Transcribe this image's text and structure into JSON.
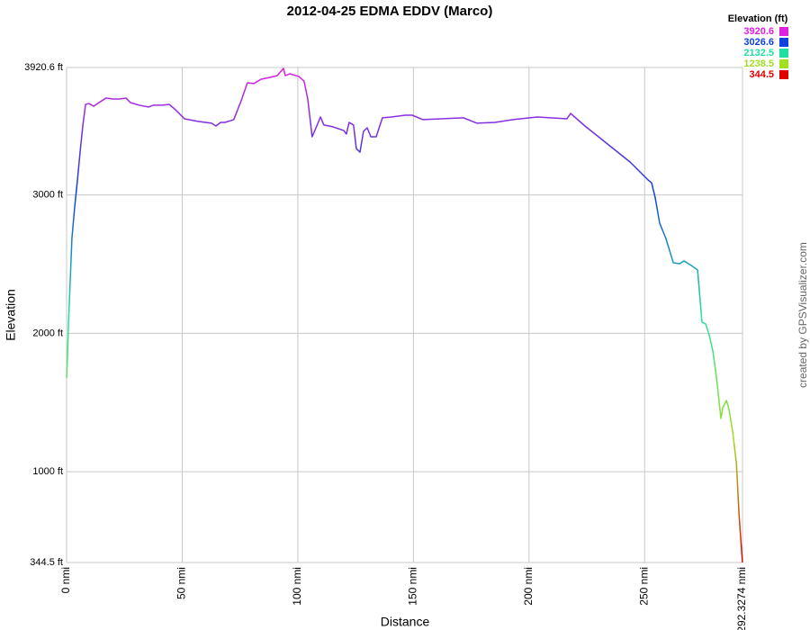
{
  "chart_data": {
    "type": "line",
    "title": "2012-04-25 EDMA EDDV (Marco)",
    "x_label": "Distance",
    "y_label": "Elevation",
    "legend_title": "Elevation (ft)",
    "color_scale": [
      {
        "value": 3920.6,
        "color": "#e020e0"
      },
      {
        "value": 3026.6,
        "color": "#1040e0"
      },
      {
        "value": 2132.5,
        "color": "#20e0a0"
      },
      {
        "value": 1238.5,
        "color": "#a0e020"
      },
      {
        "value": 344.5,
        "color": "#e00000"
      }
    ],
    "watermark": "created by GPSVisualizer.com",
    "x": [
      0,
      0.4,
      0.8,
      1.6,
      2.3,
      3.5,
      4.7,
      5.8,
      7.0,
      8.2,
      9.7,
      11.7,
      14.0,
      17.1,
      19.9,
      23.0,
      25.7,
      27.6,
      31.5,
      35.4,
      37.4,
      41.3,
      44.4,
      47.1,
      51.0,
      56.8,
      62.7,
      64.6,
      66.6,
      68.5,
      72.3,
      75.5,
      78.2,
      80.9,
      84.1,
      88.0,
      91.1,
      93.8,
      94.6,
      96.5,
      100.4,
      102.7,
      104.3,
      106.2,
      108.2,
      109.8,
      111.3,
      115.2,
      119.9,
      121.0,
      122.2,
      124.1,
      125.3,
      126.9,
      128.4,
      130.0,
      131.6,
      133.9,
      136.6,
      140.5,
      146.4,
      149.5,
      154.1,
      161.9,
      171.7,
      177.5,
      185.3,
      193.1,
      203.6,
      216.4,
      218.0,
      224.2,
      243.7,
      251.5,
      253.0,
      254.6,
      256.5,
      259.2,
      262.4,
      265.1,
      267.0,
      270.2,
      272.9,
      274.8,
      276.4,
      277.9,
      279.5,
      281.1,
      283.0,
      283.8,
      285.4,
      286.5,
      288.1,
      289.7,
      290.8,
      291.6,
      292.3274
    ],
    "values": [
      1677,
      1840,
      2067,
      2393,
      2685,
      2913,
      3108,
      3303,
      3498,
      3654,
      3660,
      3641,
      3667,
      3700,
      3693,
      3693,
      3700,
      3667,
      3648,
      3635,
      3648,
      3648,
      3654,
      3615,
      3550,
      3531,
      3518,
      3498,
      3524,
      3524,
      3544,
      3680,
      3810,
      3804,
      3836,
      3849,
      3862,
      3914,
      3862,
      3875,
      3856,
      3823,
      3693,
      3420,
      3498,
      3563,
      3505,
      3492,
      3465,
      3440,
      3524,
      3505,
      3335,
      3309,
      3459,
      3485,
      3420,
      3420,
      3557,
      3563,
      3576,
      3576,
      3544,
      3550,
      3557,
      3518,
      3524,
      3544,
      3563,
      3550,
      3589,
      3498,
      3238,
      3108,
      3088,
      2978,
      2796,
      2685,
      2510,
      2503,
      2523,
      2490,
      2458,
      2081,
      2068,
      1990,
      1872,
      1677,
      1385,
      1463,
      1515,
      1450,
      1287,
      1060,
      702,
      507,
      344.5
    ],
    "xlim": [
      0,
      292.3274
    ],
    "ylim": [
      344.5,
      3920.6
    ],
    "xticks": [
      {
        "value": 0,
        "label": "0 nmi"
      },
      {
        "value": 50,
        "label": "50 nmi"
      },
      {
        "value": 100,
        "label": "100 nmi"
      },
      {
        "value": 150,
        "label": "150 nmi"
      },
      {
        "value": 200,
        "label": "200 nmi"
      },
      {
        "value": 250,
        "label": "250 nmi"
      },
      {
        "value": 292.3274,
        "label": "292.3274 nmi"
      }
    ],
    "yticks": [
      {
        "value": 344.5,
        "label": "344.5 ft"
      },
      {
        "value": 1000,
        "label": "1000 ft"
      },
      {
        "value": 2000,
        "label": "2000 ft"
      },
      {
        "value": 3000,
        "label": "3000 ft"
      },
      {
        "value": 3920.6,
        "label": "3920.6 ft"
      }
    ],
    "grid": true
  }
}
